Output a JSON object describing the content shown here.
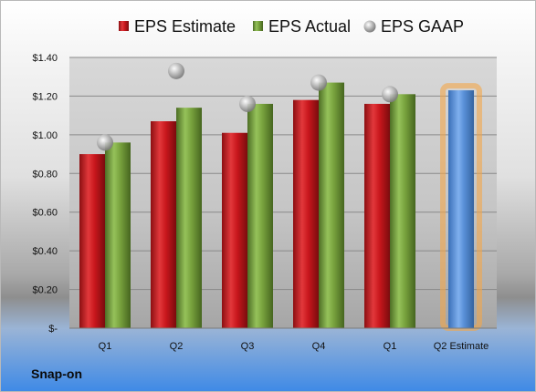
{
  "chart_data": {
    "type": "bar",
    "categories": [
      "Q1",
      "Q2",
      "Q3",
      "Q4",
      "Q1",
      "Q2 Estimate"
    ],
    "series": [
      {
        "name": "EPS Estimate",
        "type": "bar",
        "color": "#c8161c",
        "values": [
          0.9,
          1.07,
          1.01,
          1.18,
          1.16,
          null
        ]
      },
      {
        "name": "EPS Actual",
        "type": "bar",
        "color": "#77a13d",
        "values": [
          0.96,
          1.14,
          1.16,
          1.27,
          1.21,
          1.23
        ]
      },
      {
        "name": "EPS GAAP",
        "type": "scatter",
        "color": "#a8a8a8",
        "values": [
          0.96,
          1.33,
          1.16,
          1.27,
          1.21,
          null
        ]
      }
    ],
    "highlight": {
      "category_index": 5,
      "bar_color": "#5a91d9",
      "glow_color": "#f4a64a"
    },
    "ylim": [
      0,
      1.4
    ],
    "yticks": [
      0,
      0.2,
      0.4,
      0.6,
      0.8,
      1.0,
      1.2,
      1.4
    ],
    "ytick_labels": [
      "$-",
      "$0.20",
      "$0.40",
      "$0.60",
      "$0.80",
      "$1.00",
      "$1.20",
      "$1.40"
    ],
    "legend_position": "top",
    "grid": true
  },
  "footer": {
    "company": "Snap-on"
  }
}
